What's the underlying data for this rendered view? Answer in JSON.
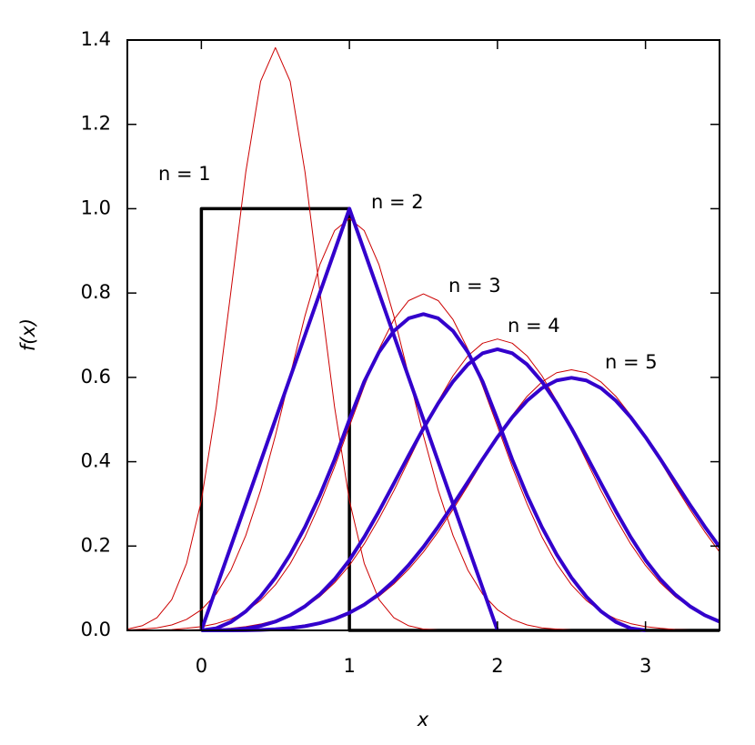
{
  "chart_data": {
    "type": "line",
    "xlabel": "x",
    "ylabel": "f(x)",
    "xlim": [
      -0.5,
      3.5
    ],
    "ylim": [
      0,
      1.4
    ],
    "xticks": [
      0,
      1,
      2,
      3
    ],
    "yticks": [
      {
        "value": 0,
        "label": "0.0"
      },
      0.2,
      0.4,
      0.6,
      0.8,
      {
        "value": 1,
        "label": "1.0"
      },
      1.2,
      1.4
    ],
    "annotations": [
      "n = 1",
      "n = 2",
      "n = 3",
      "n = 4",
      "n = 5"
    ],
    "x": [
      -0.5,
      -0.4,
      -0.3,
      -0.2,
      -0.1,
      0,
      0.1,
      0.2,
      0.3,
      0.4,
      0.5,
      0.6,
      0.7,
      0.8,
      0.9,
      1,
      1.1,
      1.2,
      1.3,
      1.4,
      1.5,
      1.6,
      1.7,
      1.8,
      1.9,
      2,
      2.1,
      2.2,
      2.3,
      2.4,
      2.5,
      2.6,
      2.7,
      2.8,
      2.9,
      3,
      3.1,
      3.2,
      3.3,
      3.4,
      3.5
    ],
    "series": [
      {
        "color": "#000000",
        "width": 3.5,
        "x": [
          0,
          0,
          1,
          1,
          3.5
        ],
        "values": [
          0,
          1,
          1,
          0,
          0
        ]
      },
      {
        "color": "#cc0000",
        "width": 1,
        "values": [
          0.003,
          0.011,
          0.03,
          0.073,
          0.159,
          0.308,
          0.529,
          0.805,
          1.087,
          1.302,
          1.382,
          1.302,
          1.087,
          0.805,
          0.529,
          0.308,
          0.159,
          0.073,
          0.03,
          0.011,
          0.003,
          0.001,
          0,
          0,
          0,
          0,
          0,
          0,
          0,
          0,
          0,
          0,
          0,
          0,
          0,
          0,
          0,
          0,
          0,
          0,
          0
        ]
      },
      {
        "color": "#cc0000",
        "width": 1,
        "values": [
          0.001,
          0.003,
          0.006,
          0.013,
          0.026,
          0.049,
          0.086,
          0.143,
          0.225,
          0.332,
          0.462,
          0.605,
          0.746,
          0.867,
          0.948,
          0.977,
          0.948,
          0.867,
          0.746,
          0.605,
          0.462,
          0.332,
          0.225,
          0.143,
          0.086,
          0.049,
          0.026,
          0.013,
          0.006,
          0.003,
          0.001,
          0,
          0,
          0,
          0,
          0,
          0,
          0,
          0,
          0,
          0
        ]
      },
      {
        "color": "#cc0000",
        "width": 1,
        "values": [
          0,
          0.001,
          0.001,
          0.002,
          0.005,
          0.009,
          0.016,
          0.027,
          0.045,
          0.071,
          0.108,
          0.158,
          0.222,
          0.3,
          0.388,
          0.484,
          0.579,
          0.667,
          0.737,
          0.782,
          0.798,
          0.782,
          0.737,
          0.667,
          0.579,
          0.484,
          0.388,
          0.3,
          0.222,
          0.158,
          0.108,
          0.071,
          0.045,
          0.027,
          0.016,
          0.009,
          0.005,
          0.002,
          0.001,
          0.001,
          0
        ]
      },
      {
        "color": "#cc0000",
        "width": 1,
        "values": [
          0,
          0,
          0,
          0.001,
          0.001,
          0.002,
          0.003,
          0.005,
          0.009,
          0.015,
          0.024,
          0.037,
          0.055,
          0.08,
          0.113,
          0.154,
          0.205,
          0.265,
          0.331,
          0.403,
          0.475,
          0.544,
          0.604,
          0.651,
          0.681,
          0.691,
          0.681,
          0.651,
          0.604,
          0.544,
          0.475,
          0.403,
          0.331,
          0.265,
          0.205,
          0.154,
          0.113,
          0.08,
          0.055,
          0.037,
          0.024
        ]
      },
      {
        "color": "#cc0000",
        "width": 1,
        "values": [
          0,
          0,
          0,
          0,
          0,
          0,
          0.001,
          0.001,
          0.002,
          0.003,
          0.005,
          0.008,
          0.013,
          0.019,
          0.029,
          0.042,
          0.059,
          0.081,
          0.11,
          0.145,
          0.186,
          0.234,
          0.287,
          0.343,
          0.401,
          0.458,
          0.51,
          0.555,
          0.589,
          0.611,
          0.618,
          0.611,
          0.589,
          0.555,
          0.51,
          0.458,
          0.401,
          0.343,
          0.287,
          0.234,
          0.186
        ]
      },
      {
        "color": "#3300cc",
        "width": 4,
        "values": [
          null,
          null,
          null,
          null,
          null,
          0,
          0.1,
          0.2,
          0.3,
          0.4,
          0.5,
          0.6,
          0.7,
          0.8,
          0.9,
          1,
          0.9,
          0.8,
          0.7,
          0.6,
          0.5,
          0.4,
          0.3,
          0.2,
          0.1,
          0,
          null,
          null,
          null,
          null,
          null,
          null,
          null,
          null,
          null,
          null,
          null,
          null,
          null,
          null,
          null
        ]
      },
      {
        "color": "#3300cc",
        "width": 4,
        "values": [
          null,
          null,
          null,
          null,
          null,
          0,
          0.005,
          0.02,
          0.045,
          0.08,
          0.125,
          0.18,
          0.245,
          0.32,
          0.405,
          0.5,
          0.59,
          0.66,
          0.71,
          0.74,
          0.75,
          0.74,
          0.71,
          0.66,
          0.59,
          0.5,
          0.405,
          0.32,
          0.245,
          0.18,
          0.125,
          0.08,
          0.045,
          0.02,
          0.005,
          0,
          null,
          null,
          null,
          null,
          null
        ]
      },
      {
        "color": "#3300cc",
        "width": 4,
        "values": [
          null,
          null,
          null,
          null,
          null,
          0,
          0.0002,
          0.0013,
          0.0045,
          0.0107,
          0.0208,
          0.036,
          0.0572,
          0.0853,
          0.1215,
          0.1667,
          0.2212,
          0.2827,
          0.3482,
          0.4147,
          0.4792,
          0.5387,
          0.5902,
          0.6307,
          0.6572,
          0.6667,
          0.6572,
          0.6307,
          0.5902,
          0.5387,
          0.4792,
          0.4147,
          0.3482,
          0.2827,
          0.2212,
          0.1667,
          0.1215,
          0.0853,
          0.0572,
          0.036,
          0.0208
        ]
      },
      {
        "color": "#3300cc",
        "width": 4,
        "values": [
          null,
          null,
          null,
          null,
          null,
          0,
          0,
          0.0001,
          0.0003,
          0.0011,
          0.0026,
          0.0054,
          0.01,
          0.0171,
          0.0273,
          0.0417,
          0.061,
          0.0861,
          0.1173,
          0.1547,
          0.1979,
          0.2461,
          0.298,
          0.3521,
          0.4063,
          0.4583,
          0.5054,
          0.5447,
          0.5744,
          0.5927,
          0.599,
          0.5927,
          0.5744,
          0.5447,
          0.5054,
          0.4583,
          0.4063,
          0.3521,
          0.298,
          0.2461,
          0.1979
        ]
      }
    ]
  }
}
